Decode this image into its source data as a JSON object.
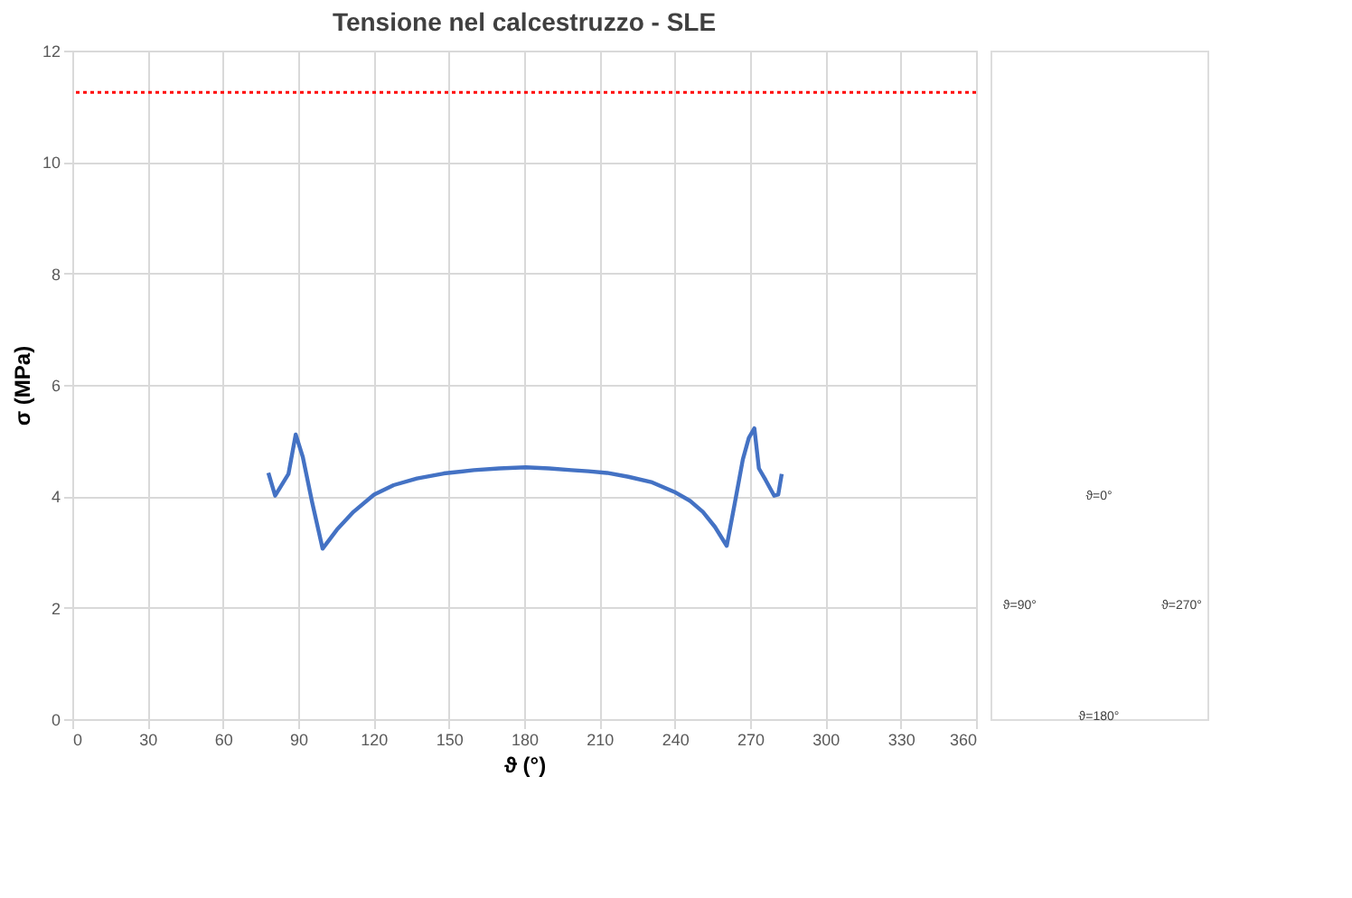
{
  "chart_data": {
    "type": "line",
    "title": "Tensione nel calcestruzzo - SLE",
    "xlabel": "ϑ (°)",
    "ylabel": "σ (MPa)",
    "xlim": [
      0,
      360
    ],
    "xticks": [
      0,
      30,
      60,
      90,
      120,
      150,
      180,
      210,
      240,
      270,
      300,
      330,
      360
    ],
    "ylim": [
      0,
      12
    ],
    "yticks": [
      0,
      2,
      4,
      6,
      8,
      10,
      12
    ],
    "grid": true,
    "marker": "none",
    "line_style": "solid",
    "series": [
      {
        "color": "#4472c4",
        "x": [
          78.1,
          80.8,
          86.1,
          89.0,
          91.8,
          95.5,
          99.7,
          105.4,
          112.0,
          120.2,
          128.0,
          137.3,
          148.0,
          160.0,
          170.0,
          180.6,
          190.0,
          198.8,
          205.6,
          213.0,
          221.5,
          231.0,
          239.8,
          246.0,
          251.2,
          256.0,
          260.7,
          264.0,
          267.1,
          269.5,
          271.7,
          273.5,
          276.2,
          279.6,
          281.2,
          282.6
        ],
        "values": [
          4.42,
          4.01,
          4.4,
          5.11,
          4.71,
          3.9,
          3.06,
          3.4,
          3.72,
          4.03,
          4.2,
          4.32,
          4.41,
          4.47,
          4.5,
          4.52,
          4.5,
          4.47,
          4.45,
          4.42,
          4.35,
          4.25,
          4.08,
          3.92,
          3.72,
          3.45,
          3.11,
          3.9,
          4.66,
          5.05,
          5.22,
          4.5,
          4.29,
          4.01,
          4.03,
          4.4
        ]
      }
    ],
    "ref_lines": [
      {
        "axis": "y",
        "value": 11.25,
        "color": "#ff0000",
        "line_style": "dotted"
      }
    ],
    "annotations": [
      "ϑ=0°",
      "ϑ=90°",
      "ϑ=270°",
      "ϑ=180°"
    ]
  }
}
